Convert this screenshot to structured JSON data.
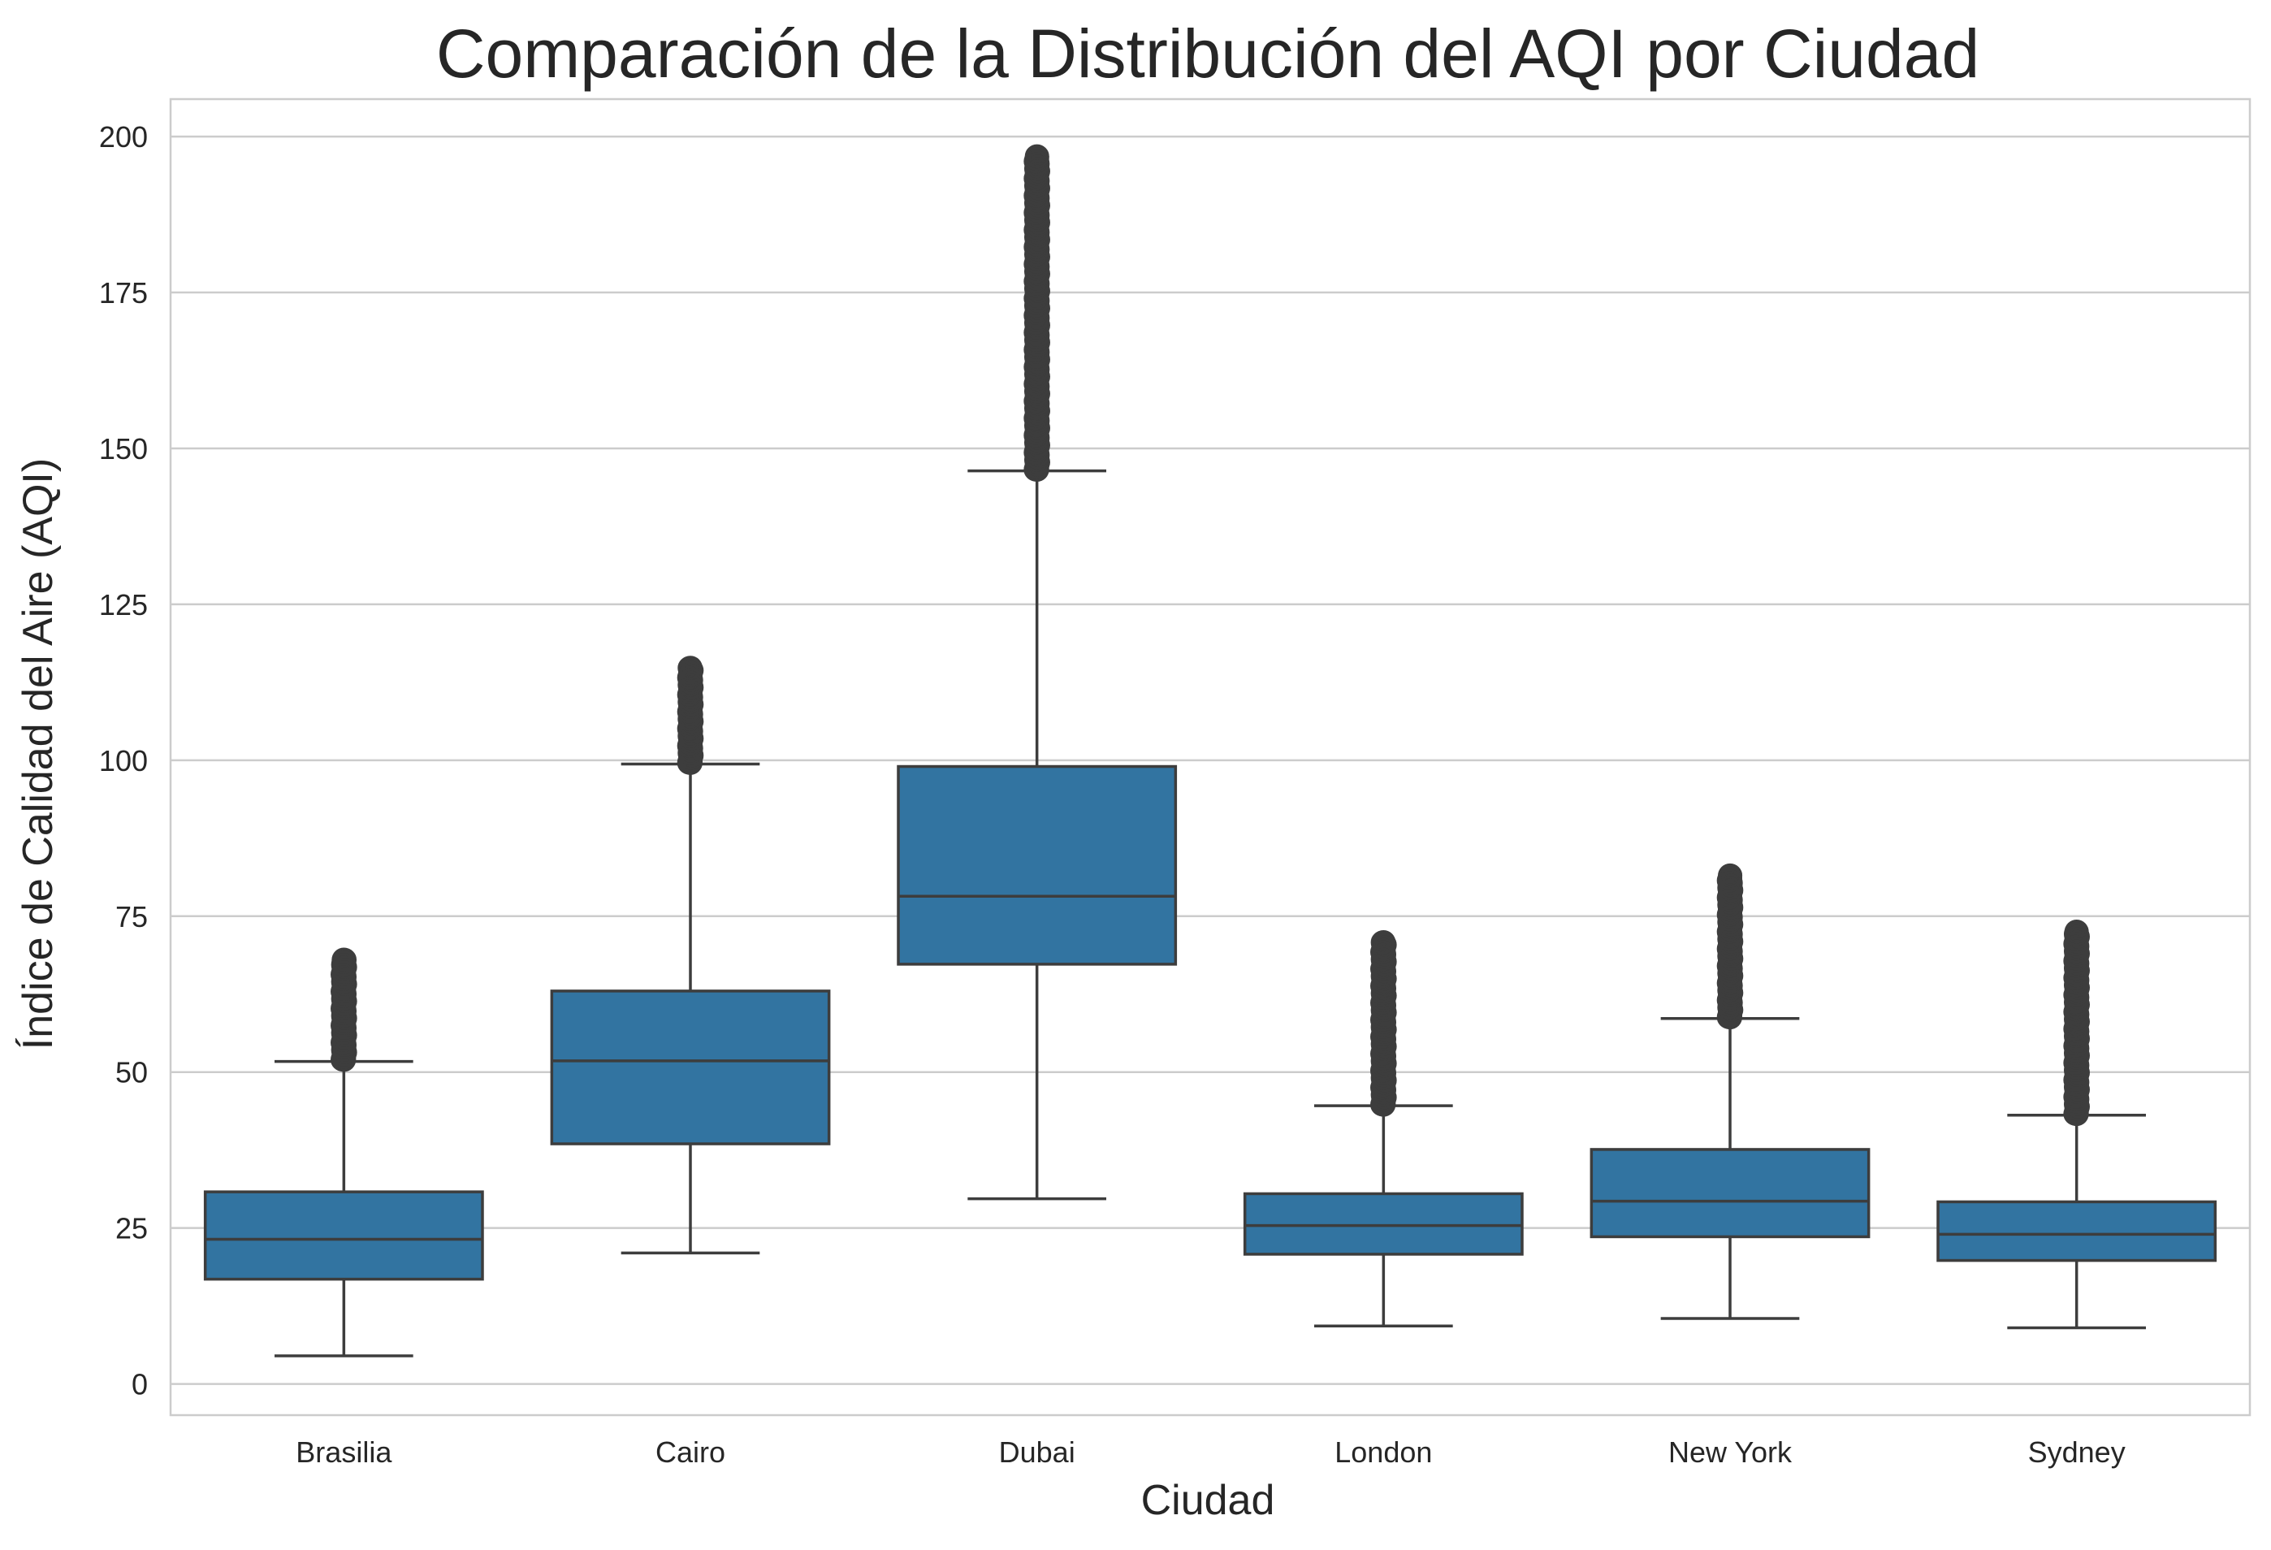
{
  "chart_data": {
    "type": "box",
    "title": "Comparación de la Distribución del AQI por Ciudad",
    "xlabel": "Ciudad",
    "ylabel": "Índice de Calidad del Aire (AQI)",
    "ylim": [
      -5,
      206
    ],
    "yticks": [
      0,
      25,
      50,
      75,
      100,
      125,
      150,
      175,
      200
    ],
    "grid": true,
    "colors": {
      "box": "#3274a1",
      "line": "#3d3d3d",
      "grid": "#cccccc",
      "frame": "#cccccc"
    },
    "categories": [
      "Brasilia",
      "Cairo",
      "Dubai",
      "London",
      "New York",
      "Sydney"
    ],
    "boxes": [
      {
        "category": "Brasilia",
        "whisker_low": 4.5,
        "q1": 16.8,
        "median": 23.2,
        "q3": 30.8,
        "whisker_high": 51.7,
        "outliers_min": 52.0,
        "outliers_max": 68.0
      },
      {
        "category": "Cairo",
        "whisker_low": 21.0,
        "q1": 38.5,
        "median": 51.8,
        "q3": 63.0,
        "whisker_high": 99.4,
        "outliers_min": 99.6,
        "outliers_max": 114.8
      },
      {
        "category": "Dubai",
        "whisker_low": 29.7,
        "q1": 67.3,
        "median": 78.2,
        "q3": 99.0,
        "whisker_high": 146.4,
        "outliers_min": 146.6,
        "outliers_max": 196.8
      },
      {
        "category": "London",
        "whisker_low": 9.3,
        "q1": 20.8,
        "median": 25.4,
        "q3": 30.5,
        "whisker_high": 44.6,
        "outliers_min": 44.8,
        "outliers_max": 70.8
      },
      {
        "category": "New York",
        "whisker_low": 10.5,
        "q1": 23.6,
        "median": 29.3,
        "q3": 37.6,
        "whisker_high": 58.6,
        "outliers_min": 58.8,
        "outliers_max": 81.5
      },
      {
        "category": "Sydney",
        "whisker_low": 9.0,
        "q1": 19.8,
        "median": 24.0,
        "q3": 29.2,
        "whisker_high": 43.1,
        "outliers_min": 43.3,
        "outliers_max": 72.5
      }
    ]
  }
}
